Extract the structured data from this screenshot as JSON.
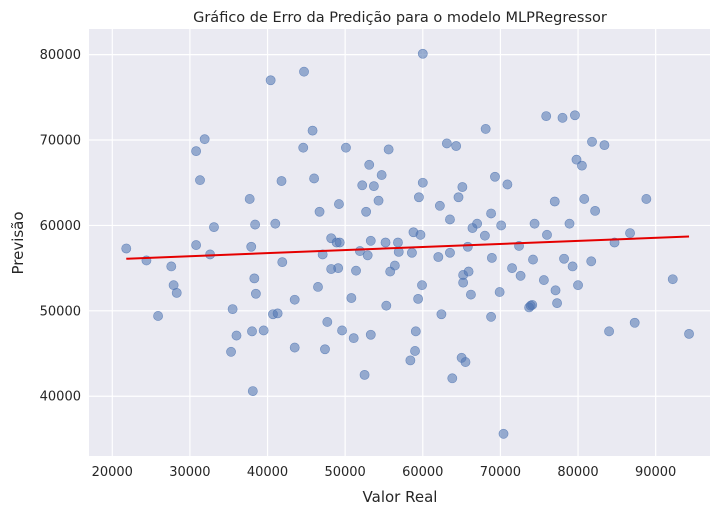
{
  "chart_data": {
    "type": "scatter",
    "title": "Gráfico de Erro da Predição para o modelo MLPRegressor",
    "xlabel": "Valor Real",
    "ylabel": "Previsão",
    "xlim": [
      17000,
      97000
    ],
    "ylim": [
      33000,
      83000
    ],
    "xticks": [
      20000,
      30000,
      40000,
      50000,
      60000,
      70000,
      80000,
      90000
    ],
    "yticks": [
      40000,
      50000,
      60000,
      70000,
      80000
    ],
    "grid": true,
    "colors": {
      "background": "#eaeaf2",
      "grid": "#ffffff",
      "points": "#4c72b0",
      "fit_line": "#e50000"
    },
    "fit_line": {
      "x": [
        21800,
        94300
      ],
      "y": [
        56100,
        58700
      ]
    },
    "points": [
      [
        21800,
        57300
      ],
      [
        24400,
        55900
      ],
      [
        25900,
        49400
      ],
      [
        27600,
        55200
      ],
      [
        27900,
        53000
      ],
      [
        28300,
        52100
      ],
      [
        30800,
        57700
      ],
      [
        30800,
        68700
      ],
      [
        31300,
        65300
      ],
      [
        31900,
        70100
      ],
      [
        32600,
        56600
      ],
      [
        33100,
        59800
      ],
      [
        35300,
        45200
      ],
      [
        35500,
        50200
      ],
      [
        36000,
        47100
      ],
      [
        37700,
        63100
      ],
      [
        37900,
        57500
      ],
      [
        38000,
        47600
      ],
      [
        38100,
        40600
      ],
      [
        38300,
        53800
      ],
      [
        38400,
        60100
      ],
      [
        38500,
        52000
      ],
      [
        39500,
        47700
      ],
      [
        40400,
        77000
      ],
      [
        40700,
        49600
      ],
      [
        41000,
        60200
      ],
      [
        41300,
        49700
      ],
      [
        41800,
        65200
      ],
      [
        41900,
        55700
      ],
      [
        43500,
        45700
      ],
      [
        43500,
        51300
      ],
      [
        44600,
        69100
      ],
      [
        44700,
        78000
      ],
      [
        45800,
        71100
      ],
      [
        46000,
        65500
      ],
      [
        46500,
        52800
      ],
      [
        46700,
        61600
      ],
      [
        47100,
        56600
      ],
      [
        47400,
        45500
      ],
      [
        47700,
        48700
      ],
      [
        48200,
        58500
      ],
      [
        48200,
        54900
      ],
      [
        48900,
        58000
      ],
      [
        49100,
        55000
      ],
      [
        49200,
        62500
      ],
      [
        49300,
        58000
      ],
      [
        49600,
        47700
      ],
      [
        50100,
        69100
      ],
      [
        50800,
        51500
      ],
      [
        51100,
        46800
      ],
      [
        51400,
        54700
      ],
      [
        51900,
        57000
      ],
      [
        52200,
        64700
      ],
      [
        52500,
        42500
      ],
      [
        52700,
        61600
      ],
      [
        52900,
        56500
      ],
      [
        53100,
        67100
      ],
      [
        53300,
        47200
      ],
      [
        53300,
        58200
      ],
      [
        53700,
        64600
      ],
      [
        54300,
        62900
      ],
      [
        54700,
        65900
      ],
      [
        55200,
        58000
      ],
      [
        55300,
        50600
      ],
      [
        55600,
        68900
      ],
      [
        55800,
        54600
      ],
      [
        56400,
        55300
      ],
      [
        56800,
        58000
      ],
      [
        56900,
        56900
      ],
      [
        58400,
        44200
      ],
      [
        58600,
        56800
      ],
      [
        58800,
        59200
      ],
      [
        59000,
        45300
      ],
      [
        59100,
        47600
      ],
      [
        59400,
        51400
      ],
      [
        59500,
        63300
      ],
      [
        59700,
        58900
      ],
      [
        59900,
        53000
      ],
      [
        60000,
        65000
      ],
      [
        60000,
        80100
      ],
      [
        62000,
        56300
      ],
      [
        62200,
        62300
      ],
      [
        62400,
        49600
      ],
      [
        63100,
        69600
      ],
      [
        63500,
        56800
      ],
      [
        63500,
        60700
      ],
      [
        63800,
        42100
      ],
      [
        64300,
        69300
      ],
      [
        64600,
        63300
      ],
      [
        65000,
        44500
      ],
      [
        65100,
        64500
      ],
      [
        65200,
        53300
      ],
      [
        65200,
        54200
      ],
      [
        65500,
        44000
      ],
      [
        65800,
        57500
      ],
      [
        65900,
        54600
      ],
      [
        66200,
        51900
      ],
      [
        66400,
        59700
      ],
      [
        67000,
        60200
      ],
      [
        68000,
        58800
      ],
      [
        68100,
        71300
      ],
      [
        68800,
        61400
      ],
      [
        68800,
        49300
      ],
      [
        68900,
        56200
      ],
      [
        69300,
        65700
      ],
      [
        69900,
        52200
      ],
      [
        70100,
        60000
      ],
      [
        70400,
        35600
      ],
      [
        70900,
        64800
      ],
      [
        71500,
        55000
      ],
      [
        72400,
        57600
      ],
      [
        72600,
        54100
      ],
      [
        73700,
        50400
      ],
      [
        73900,
        50600
      ],
      [
        74100,
        50700
      ],
      [
        74200,
        56000
      ],
      [
        74400,
        60200
      ],
      [
        75600,
        53600
      ],
      [
        75900,
        72800
      ],
      [
        76000,
        58900
      ],
      [
        77000,
        62800
      ],
      [
        77100,
        52400
      ],
      [
        77300,
        50900
      ],
      [
        78000,
        72600
      ],
      [
        78200,
        56100
      ],
      [
        78900,
        60200
      ],
      [
        79300,
        55200
      ],
      [
        79600,
        72900
      ],
      [
        79800,
        67700
      ],
      [
        80000,
        53000
      ],
      [
        80500,
        67000
      ],
      [
        80800,
        63100
      ],
      [
        81700,
        55800
      ],
      [
        81800,
        69800
      ],
      [
        82200,
        61700
      ],
      [
        83400,
        69400
      ],
      [
        84000,
        47600
      ],
      [
        84700,
        58000
      ],
      [
        86700,
        59100
      ],
      [
        87300,
        48600
      ],
      [
        88800,
        63100
      ],
      [
        92200,
        53700
      ],
      [
        94300,
        47300
      ]
    ]
  }
}
